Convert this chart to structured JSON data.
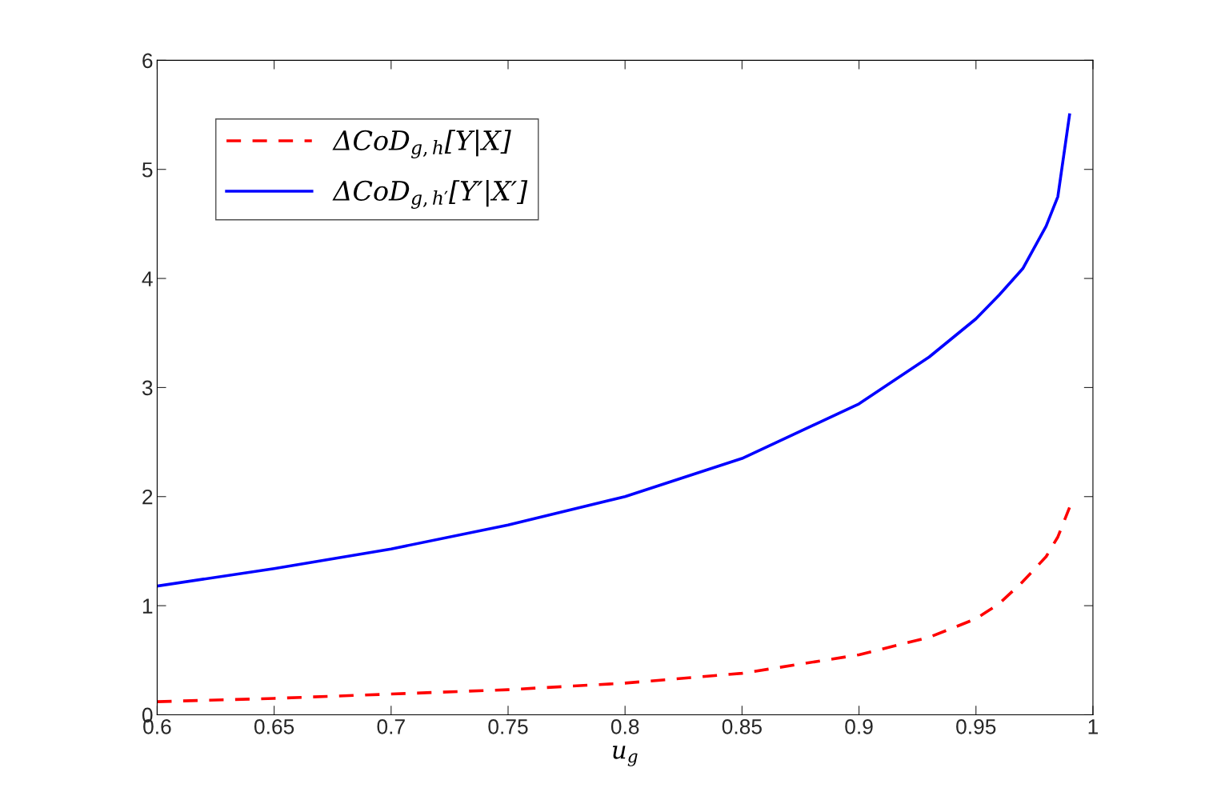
{
  "chart_data": {
    "type": "line",
    "xlabel": "u$_{g}$",
    "x": [
      0.6,
      0.65,
      0.7,
      0.75,
      0.8,
      0.85,
      0.9,
      0.93,
      0.95,
      0.96,
      0.97,
      0.98,
      0.985,
      0.99
    ],
    "series": [
      {
        "name": "ΔCoD$_{g,h}$[Y|X]",
        "color": "#ff0000",
        "line_style": "dashed",
        "values": [
          0.12,
          0.15,
          0.19,
          0.23,
          0.29,
          0.38,
          0.55,
          0.71,
          0.88,
          1.02,
          1.22,
          1.45,
          1.63,
          1.9
        ]
      },
      {
        "name": "ΔCoD$_{g,h′}$[Y′|X′]",
        "color": "#0000ff",
        "line_style": "solid",
        "values": [
          1.18,
          1.34,
          1.52,
          1.74,
          2.0,
          2.35,
          2.85,
          3.28,
          3.63,
          3.85,
          4.09,
          4.48,
          4.75,
          5.5
        ]
      }
    ],
    "xlim": [
      0.6,
      1
    ],
    "xticks": [
      0.6,
      0.65,
      0.7,
      0.75,
      0.8,
      0.85,
      0.9,
      0.95,
      1
    ],
    "ylim": [
      0,
      6
    ],
    "yticks": [
      0,
      1,
      2,
      3,
      4,
      5,
      6
    ],
    "grid": false,
    "legend": "top left"
  }
}
